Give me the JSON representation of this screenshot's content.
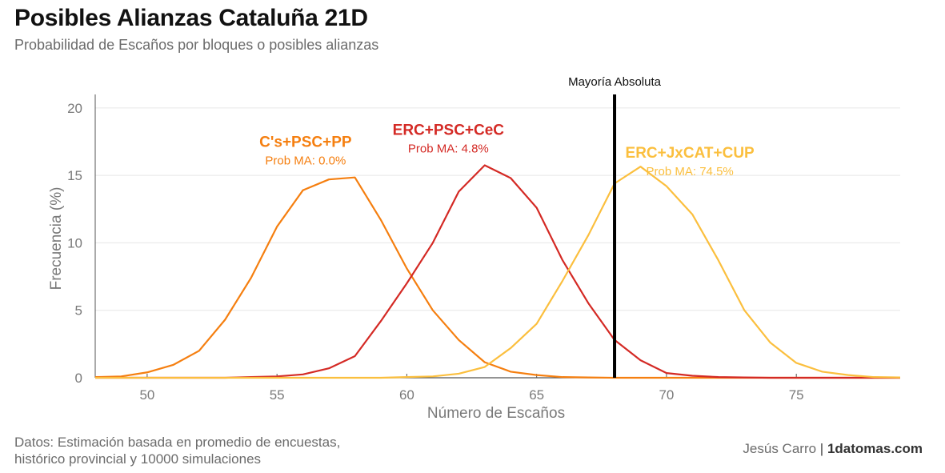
{
  "header": {
    "title": "Posibles Alianzas Cataluña 21D",
    "subtitle": "Probabilidad de Escaños por bloques o posibles alianzas"
  },
  "footer": {
    "source_line1": "Datos: Estimación basada en promedio de encuestas,",
    "source_line2": "histórico provincial y 10000 simulaciones",
    "author": "Jesús Carro",
    "separator": "|",
    "brand": "1datomas.com"
  },
  "chart_data": {
    "type": "line",
    "xlabel": "Número de Escaños",
    "ylabel": "Frecuencia (%)",
    "xlim": [
      48,
      79
    ],
    "ylim": [
      0,
      21
    ],
    "xticks": [
      50,
      55,
      60,
      65,
      70,
      75
    ],
    "yticks": [
      0,
      5,
      10,
      15,
      20
    ],
    "grid": "horizontal",
    "reference_line": {
      "x": 68,
      "label": "Mayoría Absoluta",
      "color": "#000000"
    },
    "x": [
      48,
      49,
      50,
      51,
      52,
      53,
      54,
      55,
      56,
      57,
      58,
      59,
      60,
      61,
      62,
      63,
      64,
      65,
      66,
      67,
      68,
      69,
      70,
      71,
      72,
      73,
      74,
      75,
      76,
      77,
      78,
      79
    ],
    "series": [
      {
        "name": "C's+PSC+PP",
        "annotation": "Prob MA: 0.0%",
        "color": "#f57f10",
        "values": [
          0.05,
          0.1,
          0.4,
          0.95,
          2.0,
          4.3,
          7.4,
          11.2,
          13.9,
          14.7,
          14.85,
          11.7,
          8.1,
          5.0,
          2.8,
          1.15,
          0.45,
          0.2,
          0.05,
          0.02,
          0,
          0,
          0,
          0,
          0,
          0,
          0,
          0,
          0,
          0,
          0,
          0
        ]
      },
      {
        "name": "ERC+PSC+CeC",
        "annotation": "Prob MA: 4.8%",
        "color": "#d42a25",
        "values": [
          0,
          0,
          0,
          0,
          0,
          0,
          0.05,
          0.1,
          0.25,
          0.7,
          1.6,
          4.2,
          7.0,
          10.0,
          13.8,
          15.75,
          14.8,
          12.6,
          8.7,
          5.5,
          2.8,
          1.3,
          0.35,
          0.15,
          0.05,
          0.02,
          0,
          0,
          0,
          0,
          0,
          0
        ]
      },
      {
        "name": "ERC+JxCAT+CUP",
        "annotation": "Prob MA: 74.5%",
        "color": "#fbbf3e",
        "values": [
          0,
          0,
          0,
          0,
          0,
          0,
          0,
          0,
          0,
          0,
          0,
          0,
          0.05,
          0.1,
          0.3,
          0.8,
          2.2,
          4.0,
          7.2,
          10.6,
          14.4,
          15.65,
          14.2,
          12.1,
          8.7,
          5.0,
          2.6,
          1.1,
          0.45,
          0.2,
          0.05,
          0.02
        ]
      }
    ]
  }
}
